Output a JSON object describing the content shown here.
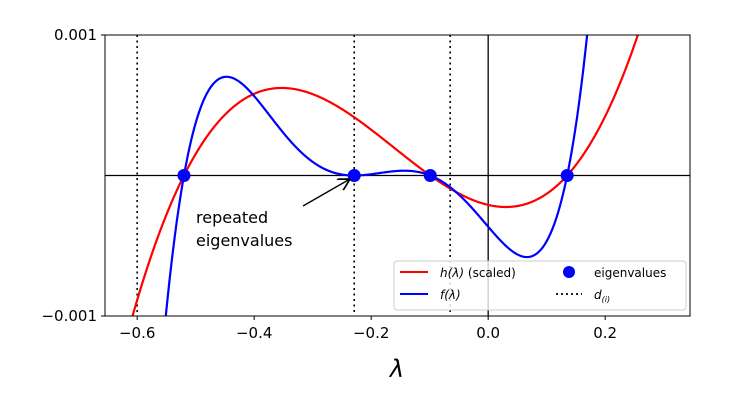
{
  "chart_data": {
    "type": "line",
    "title": "",
    "xlabel": "λ",
    "ylabel": "",
    "xlim": [
      -0.655,
      0.345
    ],
    "ylim": [
      -0.001,
      0.001
    ],
    "xticks": [
      -0.6,
      -0.4,
      -0.2,
      0.0,
      0.2
    ],
    "xtick_labels": [
      "−0.6",
      "−0.4",
      "−0.2",
      "0.0",
      "0.2"
    ],
    "yticks": [
      -0.001,
      0.001
    ],
    "ytick_labels": [
      "−0.001",
      "0.001"
    ],
    "series": [
      {
        "name": "h(λ) (scaled)",
        "color": "#ff0000",
        "form": "cubic",
        "scale": 0.0301,
        "roots": [
          -0.52,
          -0.099,
          0.135
        ]
      },
      {
        "name": "f(λ)",
        "color": "#0000ff",
        "form": "polynomial",
        "scale": 1.0,
        "roots": [
          -0.52,
          -0.229,
          -0.229,
          -0.099,
          0.135
        ]
      }
    ],
    "eigenvalues": {
      "name": "eigenvalues",
      "color": "#0000ff",
      "x": [
        -0.52,
        -0.229,
        -0.099,
        0.135
      ],
      "y": [
        0,
        0,
        0,
        0
      ]
    },
    "poles": {
      "name": "d_(i)",
      "x": [
        -0.6,
        -0.229,
        -0.065
      ]
    },
    "annotation": {
      "lines": [
        "repeated",
        "eigenvalues"
      ],
      "points_to": [
        -0.229,
        0
      ]
    },
    "legend": {
      "placement": "lower-right",
      "entries": [
        {
          "label_main": "h(λ)",
          "label_rest": " (scaled)"
        },
        {
          "label_main": "f(λ)",
          "label_rest": ""
        },
        {
          "label_main": "eigenvalues",
          "label_rest": ""
        },
        {
          "label_main": "d",
          "label_sub": "(i)"
        }
      ]
    },
    "grid": false
  }
}
